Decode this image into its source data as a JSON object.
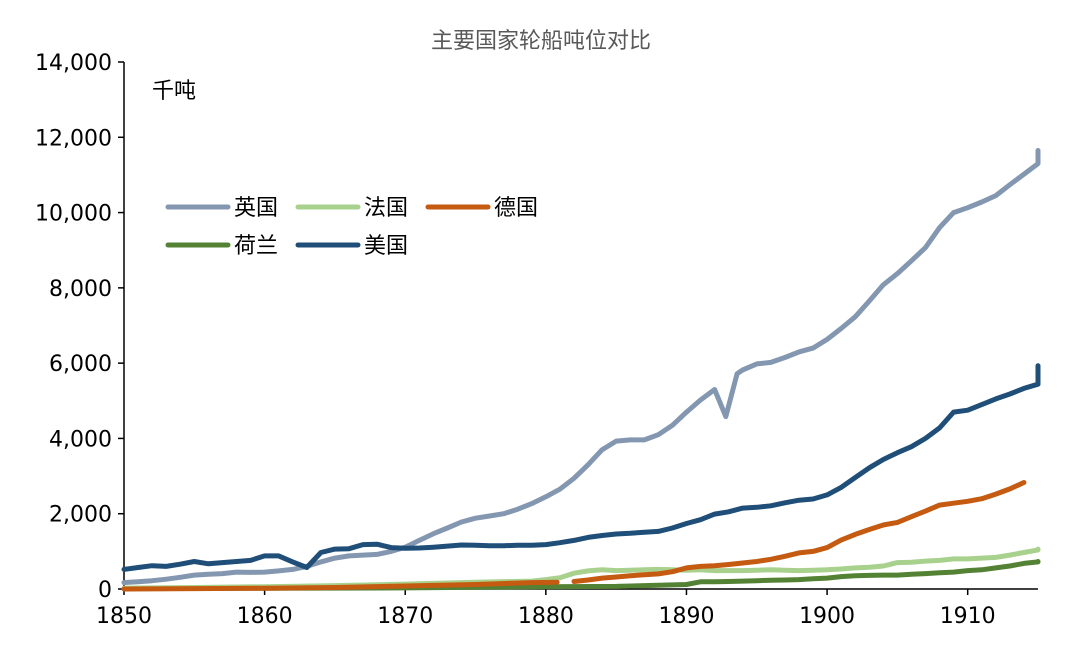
{
  "chart_data": {
    "type": "line",
    "title": "主要国家轮船吨位对比",
    "unit_label": "千吨",
    "xlabel": "",
    "ylabel": "",
    "xlim": [
      1850,
      1915
    ],
    "ylim": [
      0,
      14000
    ],
    "x_ticks": [
      1850,
      1860,
      1870,
      1880,
      1890,
      1900,
      1910
    ],
    "y_ticks": [
      0,
      2000,
      4000,
      6000,
      8000,
      10000,
      12000,
      14000
    ],
    "y_tick_labels": [
      "0",
      "2,000",
      "4,000",
      "6,000",
      "8,000",
      "10,000",
      "12,000",
      "14,000"
    ],
    "grid": false,
    "legend_position": "upper-left",
    "series": [
      {
        "name": "英国",
        "color": "#8497b0",
        "points": [
          [
            1850,
            170
          ],
          [
            1851,
            190
          ],
          [
            1852,
            220
          ],
          [
            1853,
            260
          ],
          [
            1854,
            310
          ],
          [
            1855,
            370
          ],
          [
            1856,
            390
          ],
          [
            1857,
            410
          ],
          [
            1858,
            450
          ],
          [
            1859,
            440
          ],
          [
            1860,
            450
          ],
          [
            1861,
            480
          ],
          [
            1862,
            520
          ],
          [
            1863,
            600
          ],
          [
            1864,
            720
          ],
          [
            1865,
            820
          ],
          [
            1866,
            880
          ],
          [
            1867,
            900
          ],
          [
            1868,
            920
          ],
          [
            1869,
            1000
          ],
          [
            1870,
            1110
          ],
          [
            1871,
            1290
          ],
          [
            1872,
            1470
          ],
          [
            1873,
            1620
          ],
          [
            1874,
            1780
          ],
          [
            1875,
            1880
          ],
          [
            1876,
            1940
          ],
          [
            1877,
            2000
          ],
          [
            1878,
            2120
          ],
          [
            1879,
            2270
          ],
          [
            1880,
            2450
          ],
          [
            1881,
            2650
          ],
          [
            1882,
            2940
          ],
          [
            1883,
            3300
          ],
          [
            1884,
            3700
          ],
          [
            1885,
            3930
          ],
          [
            1886,
            3960
          ],
          [
            1887,
            3960
          ],
          [
            1888,
            4100
          ],
          [
            1889,
            4350
          ],
          [
            1890,
            4700
          ],
          [
            1891,
            5020
          ],
          [
            1892,
            5300
          ],
          [
            1892.8,
            4580
          ],
          [
            1893.6,
            5720
          ],
          [
            1894,
            5820
          ],
          [
            1895,
            5980
          ],
          [
            1896,
            6020
          ],
          [
            1897,
            6150
          ],
          [
            1898,
            6300
          ],
          [
            1899,
            6400
          ],
          [
            1900,
            6630
          ],
          [
            1901,
            6920
          ],
          [
            1902,
            7230
          ],
          [
            1903,
            7650
          ],
          [
            1904,
            8080
          ],
          [
            1905,
            8380
          ],
          [
            1906,
            8720
          ],
          [
            1907,
            9070
          ],
          [
            1908,
            9600
          ],
          [
            1909,
            10000
          ],
          [
            1910,
            10130
          ],
          [
            1911,
            10280
          ],
          [
            1912,
            10450
          ],
          [
            1913,
            10740
          ],
          [
            1914,
            11020
          ],
          [
            1915,
            11300
          ],
          [
            1916,
            11650
          ]
        ]
      },
      {
        "name": "法国",
        "color": "#a9d18e",
        "points": [
          [
            1850,
            20
          ],
          [
            1855,
            40
          ],
          [
            1860,
            60
          ],
          [
            1865,
            90
          ],
          [
            1870,
            130
          ],
          [
            1875,
            180
          ],
          [
            1879,
            210
          ],
          [
            1880,
            250
          ],
          [
            1881,
            300
          ],
          [
            1882,
            420
          ],
          [
            1883,
            480
          ],
          [
            1884,
            510
          ],
          [
            1885,
            490
          ],
          [
            1886,
            500
          ],
          [
            1887,
            510
          ],
          [
            1888,
            520
          ],
          [
            1889,
            510
          ],
          [
            1890,
            500
          ],
          [
            1891,
            510
          ],
          [
            1892,
            490
          ],
          [
            1893,
            490
          ],
          [
            1894,
            490
          ],
          [
            1895,
            500
          ],
          [
            1896,
            510
          ],
          [
            1897,
            500
          ],
          [
            1898,
            490
          ],
          [
            1899,
            500
          ],
          [
            1900,
            510
          ],
          [
            1901,
            530
          ],
          [
            1902,
            560
          ],
          [
            1903,
            580
          ],
          [
            1904,
            610
          ],
          [
            1905,
            700
          ],
          [
            1906,
            710
          ],
          [
            1907,
            740
          ],
          [
            1908,
            760
          ],
          [
            1909,
            800
          ],
          [
            1910,
            800
          ],
          [
            1911,
            820
          ],
          [
            1912,
            840
          ],
          [
            1913,
            900
          ],
          [
            1914,
            970
          ],
          [
            1915,
            1040
          ],
          [
            1916,
            1060
          ]
        ]
      },
      {
        "name": "德国",
        "color": "#c55a11",
        "points": [
          [
            1850,
            0
          ],
          [
            1855,
            10
          ],
          [
            1860,
            20
          ],
          [
            1865,
            40
          ],
          [
            1870,
            80
          ],
          [
            1875,
            120
          ],
          [
            1879,
            170
          ],
          [
            1880.8,
            180
          ],
          null,
          [
            1882,
            200
          ],
          [
            1883,
            240
          ],
          [
            1884,
            290
          ],
          [
            1885,
            320
          ],
          [
            1886,
            350
          ],
          [
            1887,
            380
          ],
          [
            1888,
            400
          ],
          [
            1889,
            460
          ],
          [
            1890,
            560
          ],
          [
            1891,
            600
          ],
          [
            1892,
            620
          ],
          [
            1893,
            650
          ],
          [
            1894,
            690
          ],
          [
            1895,
            730
          ],
          [
            1896,
            790
          ],
          [
            1897,
            870
          ],
          [
            1898,
            960
          ],
          [
            1899,
            1000
          ],
          [
            1900,
            1100
          ],
          [
            1901,
            1300
          ],
          [
            1902,
            1450
          ],
          [
            1903,
            1580
          ],
          [
            1904,
            1700
          ],
          [
            1905,
            1770
          ],
          [
            1906,
            1920
          ],
          [
            1907,
            2070
          ],
          [
            1908,
            2230
          ],
          [
            1909,
            2280
          ],
          [
            1910,
            2330
          ],
          [
            1911,
            2400
          ],
          [
            1912,
            2520
          ],
          [
            1913,
            2660
          ],
          [
            1914,
            2830
          ]
        ]
      },
      {
        "name": "荷兰",
        "color": "#548235",
        "points": [
          [
            1850,
            10
          ],
          [
            1860,
            20
          ],
          [
            1870,
            30
          ],
          [
            1880,
            60
          ],
          [
            1885,
            70
          ],
          [
            1889,
            110
          ],
          [
            1890,
            120
          ],
          [
            1891,
            190
          ],
          [
            1892,
            190
          ],
          [
            1893,
            200
          ],
          [
            1894,
            210
          ],
          [
            1895,
            220
          ],
          [
            1896,
            230
          ],
          [
            1897,
            240
          ],
          [
            1898,
            250
          ],
          [
            1899,
            270
          ],
          [
            1900,
            290
          ],
          [
            1901,
            330
          ],
          [
            1902,
            350
          ],
          [
            1903,
            360
          ],
          [
            1904,
            370
          ],
          [
            1905,
            370
          ],
          [
            1906,
            390
          ],
          [
            1907,
            410
          ],
          [
            1908,
            430
          ],
          [
            1909,
            450
          ],
          [
            1910,
            490
          ],
          [
            1911,
            510
          ],
          [
            1912,
            560
          ],
          [
            1913,
            610
          ],
          [
            1914,
            680
          ],
          [
            1915,
            720
          ],
          [
            1916,
            730
          ]
        ]
      },
      {
        "name": "美国",
        "color": "#1f4e79",
        "points": [
          [
            1850,
            520
          ],
          [
            1851,
            570
          ],
          [
            1852,
            620
          ],
          [
            1853,
            600
          ],
          [
            1854,
            660
          ],
          [
            1855,
            730
          ],
          [
            1856,
            670
          ],
          [
            1857,
            700
          ],
          [
            1858,
            730
          ],
          [
            1859,
            760
          ],
          [
            1860,
            880
          ],
          [
            1861,
            880
          ],
          [
            1862,
            720
          ],
          [
            1863,
            570
          ],
          [
            1864,
            970
          ],
          [
            1865,
            1060
          ],
          [
            1866,
            1070
          ],
          [
            1867,
            1180
          ],
          [
            1868,
            1190
          ],
          [
            1869,
            1100
          ],
          [
            1870,
            1080
          ],
          [
            1871,
            1090
          ],
          [
            1872,
            1110
          ],
          [
            1873,
            1140
          ],
          [
            1874,
            1170
          ],
          [
            1875,
            1160
          ],
          [
            1876,
            1150
          ],
          [
            1877,
            1150
          ],
          [
            1878,
            1160
          ],
          [
            1879,
            1160
          ],
          [
            1880,
            1180
          ],
          [
            1881,
            1230
          ],
          [
            1882,
            1290
          ],
          [
            1883,
            1370
          ],
          [
            1884,
            1420
          ],
          [
            1885,
            1460
          ],
          [
            1886,
            1480
          ],
          [
            1887,
            1510
          ],
          [
            1888,
            1530
          ],
          [
            1889,
            1620
          ],
          [
            1890,
            1740
          ],
          [
            1891,
            1840
          ],
          [
            1892,
            1990
          ],
          [
            1893,
            2050
          ],
          [
            1894,
            2150
          ],
          [
            1895,
            2170
          ],
          [
            1896,
            2210
          ],
          [
            1897,
            2290
          ],
          [
            1898,
            2360
          ],
          [
            1899,
            2390
          ],
          [
            1900,
            2500
          ],
          [
            1901,
            2700
          ],
          [
            1902,
            2960
          ],
          [
            1903,
            3220
          ],
          [
            1904,
            3440
          ],
          [
            1905,
            3620
          ],
          [
            1906,
            3780
          ],
          [
            1907,
            4000
          ],
          [
            1908,
            4280
          ],
          [
            1909,
            4700
          ],
          [
            1910,
            4750
          ],
          [
            1911,
            4900
          ],
          [
            1912,
            5050
          ],
          [
            1913,
            5180
          ],
          [
            1914,
            5330
          ],
          [
            1915,
            5440
          ],
          [
            1916,
            5930
          ]
        ]
      }
    ]
  }
}
